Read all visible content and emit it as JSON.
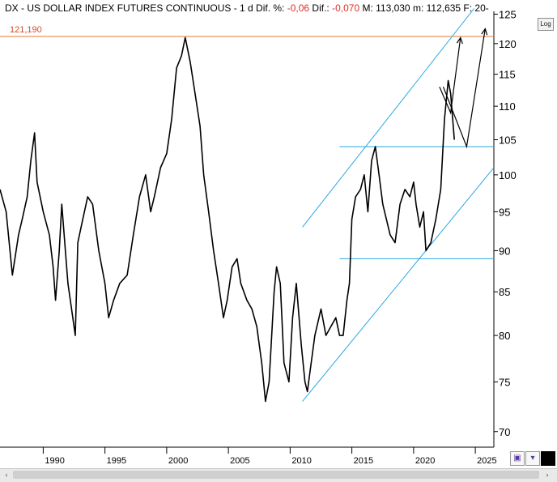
{
  "header": {
    "symbol_text": "DX - US DOLLAR INDEX FUTURES CONTINUOUS -  1 d  Dif. %: ",
    "pct_change": "-0,06",
    "dif_label": "  Dif.: ",
    "abs_change": "-0,070",
    "max_text": "  M: 113,030  m: 112,635  F: 20-"
  },
  "log_button": "Log",
  "toolbar": {
    "save_icon_glyph": "▣",
    "dropdown_icon_glyph": "▾"
  },
  "scrollbar": {
    "left_glyph": "‹",
    "right_glyph": "›"
  },
  "colors": {
    "price": "#000000",
    "channel": "#2aa8e0",
    "resistance": "#e07a3a",
    "resistance_label": "#d24b2a",
    "axis": "#000000"
  },
  "chart_data": {
    "type": "line",
    "title": "DX - US DOLLAR INDEX FUTURES CONTINUOUS",
    "x_axis": {
      "range": [
        1986.5,
        2026.5
      ],
      "ticks": [
        1990,
        1995,
        2000,
        2005,
        2010,
        2015,
        2020,
        2025
      ]
    },
    "y_axis": {
      "range": [
        68.5,
        125.5
      ],
      "scale": "log",
      "side": "right",
      "ticks": [
        70,
        75,
        80,
        85,
        90,
        95,
        100,
        105,
        110,
        115,
        120,
        125
      ]
    },
    "series": [
      {
        "x": [
          1986.5,
          1987.0,
          1987.5,
          1988.0,
          1988.3,
          1988.7,
          1989.0,
          1989.3,
          1989.5,
          1990.0,
          1990.5,
          1990.8,
          1991.0,
          1991.3,
          1991.5,
          1992.0,
          1992.3,
          1992.6,
          1992.8,
          1993.2,
          1993.6,
          1994.0,
          1994.5,
          1995.0,
          1995.3,
          1995.7,
          1996.2,
          1996.8,
          1997.3,
          1997.8,
          1998.3,
          1998.7,
          1999.0,
          1999.5,
          2000.0,
          2000.4,
          2000.8,
          2001.2,
          2001.5,
          2001.9,
          2002.3,
          2002.7,
          2003.0,
          2003.4,
          2003.8,
          2004.2,
          2004.6,
          2004.9,
          2005.3,
          2005.7,
          2006.0,
          2006.5,
          2006.9,
          2007.3,
          2007.7,
          2008.0,
          2008.3,
          2008.7,
          2008.9,
          2009.2,
          2009.5,
          2009.9,
          2010.2,
          2010.5,
          2010.9,
          2011.2,
          2011.4,
          2011.6,
          2012.0,
          2012.5,
          2012.9,
          2013.3,
          2013.7,
          2014.0,
          2014.3,
          2014.6,
          2014.8,
          2015.0,
          2015.3,
          2015.7,
          2016.0,
          2016.3,
          2016.6,
          2016.9,
          2017.2,
          2017.5,
          2017.8,
          2018.1,
          2018.5,
          2018.9,
          2019.3,
          2019.7,
          2020.0,
          2020.2,
          2020.5,
          2020.8,
          2021.0,
          2021.4,
          2021.8,
          2022.2,
          2022.5,
          2022.8,
          2023.0,
          2023.3
        ],
        "y": [
          98,
          95,
          87,
          92,
          94,
          97,
          102,
          106,
          99,
          95,
          92,
          88,
          84,
          90,
          96,
          86,
          83,
          80,
          91,
          94,
          97,
          96,
          90,
          86,
          82,
          84,
          86,
          87,
          92,
          97,
          100,
          95,
          97,
          101,
          103,
          108,
          116,
          118,
          121,
          117,
          112,
          107,
          100,
          95,
          90,
          86,
          82,
          84,
          88,
          89,
          86,
          84,
          83,
          81,
          77,
          73,
          75,
          85,
          88,
          86,
          77,
          75,
          82,
          86,
          79,
          75,
          74,
          76,
          80,
          83,
          80,
          81,
          82,
          80,
          80,
          84,
          86,
          94,
          97,
          98,
          100,
          95,
          102,
          104,
          100,
          96,
          94,
          92,
          91,
          96,
          98,
          97,
          99,
          96,
          93,
          95,
          90,
          91,
          94,
          98,
          108,
          114,
          112,
          105
        ]
      }
    ],
    "annotations": {
      "resistance_value": "121,190",
      "channel_upper": {
        "x": [
          2011.0,
          2024.9
        ],
        "y": [
          93.0,
          126.0
        ]
      },
      "channel_lower": {
        "x": [
          2011.0,
          2026.5
        ],
        "y": [
          73.0,
          101.0
        ]
      },
      "hline_104": {
        "x": [
          2014.0,
          2026.5
        ],
        "y": 104
      },
      "hline_89": {
        "x": [
          2014.0,
          2026.5
        ],
        "y": 89
      },
      "projection_arrows": [
        {
          "x": [
            2022.1,
            2023.0,
            2023.8
          ],
          "y": [
            113,
            109,
            121
          ]
        },
        {
          "x": [
            2022.4,
            2024.3,
            2025.8
          ],
          "y": [
            113,
            104,
            122.5
          ]
        }
      ]
    }
  }
}
